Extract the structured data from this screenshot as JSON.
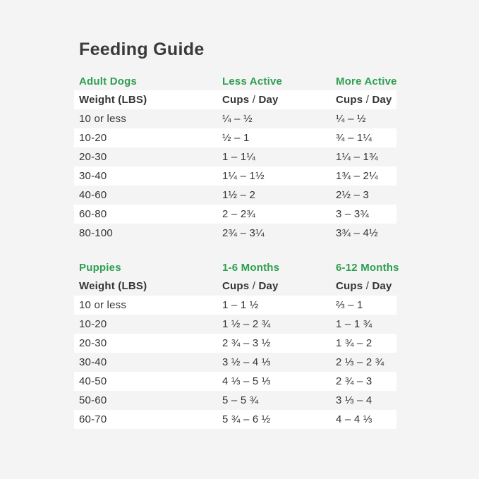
{
  "title": "Feeding Guide",
  "colors": {
    "accent_green": "#2e9e50",
    "page_background": "#f4f4f4",
    "stripe_white": "#ffffff",
    "text": "#343434"
  },
  "tables": [
    {
      "section": "Adult Dogs",
      "columns": [
        "Less Active",
        "More Active"
      ],
      "header": {
        "weight": "Weight (LBS)",
        "cups": "Cups",
        "slash": "/",
        "day": "Day"
      },
      "rows": [
        {
          "weight": "10 or less",
          "values": [
            "¼ – ½",
            "¼ – ½"
          ]
        },
        {
          "weight": "10-20",
          "values": [
            "½ – 1",
            "¾ – 1¼"
          ]
        },
        {
          "weight": "20-30",
          "values": [
            "1 – 1¼",
            "1¼ – 1¾"
          ]
        },
        {
          "weight": "30-40",
          "values": [
            "1¼ – 1½",
            "1¾ – 2¼"
          ]
        },
        {
          "weight": "40-60",
          "values": [
            "1½ – 2",
            "2½ – 3"
          ]
        },
        {
          "weight": "60-80",
          "values": [
            "2 – 2¾",
            "3 – 3¾"
          ]
        },
        {
          "weight": "80-100",
          "values": [
            "2¾ – 3¼",
            "3¾ – 4½"
          ]
        }
      ]
    },
    {
      "section": "Puppies",
      "columns": [
        "1-6 Months",
        "6-12 Months"
      ],
      "header": {
        "weight": "Weight (LBS)",
        "cups": "Cups",
        "slash": "/",
        "day": "Day"
      },
      "rows": [
        {
          "weight": "10 or less",
          "values": [
            "1 – 1 ½",
            "⅔ – 1"
          ]
        },
        {
          "weight": "10-20",
          "values": [
            "1 ½ – 2 ¾",
            "1 – 1 ¾"
          ]
        },
        {
          "weight": "20-30",
          "values": [
            "2 ¾ – 3 ½",
            "1 ¾ – 2"
          ]
        },
        {
          "weight": "30-40",
          "values": [
            "3 ½ – 4 ⅓",
            "2 ⅓ – 2 ¾"
          ]
        },
        {
          "weight": "40-50",
          "values": [
            "4 ⅓ – 5 ⅓",
            "2 ¾ – 3"
          ]
        },
        {
          "weight": "50-60",
          "values": [
            "5 – 5 ¾",
            "3 ⅓ – 4"
          ]
        },
        {
          "weight": "60-70",
          "values": [
            "5 ¾ – 6 ½",
            "4 – 4 ⅓"
          ]
        }
      ]
    }
  ]
}
